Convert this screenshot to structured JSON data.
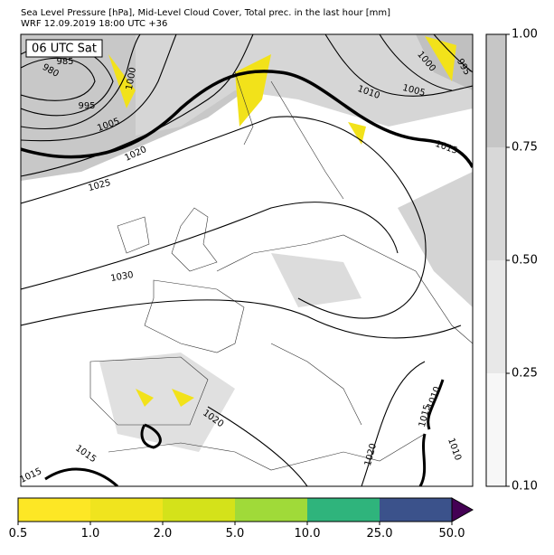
{
  "header": {
    "title": "Sea Level Pressure [hPa], Mid-Level Cloud Cover, Total prec. in the last hour [mm]",
    "subtitle": "WRF 12.09.2019 18:00 UTC +36"
  },
  "map": {
    "time_label": "06 UTC Sat",
    "isobar_labels": [
      "985",
      "980",
      "995",
      "1000",
      "1005",
      "1020",
      "1025",
      "1030",
      "1010",
      "1005",
      "1000",
      "995",
      "1015",
      "1020",
      "1015",
      "1015",
      "1010",
      "1020",
      "1015",
      "1010"
    ]
  },
  "cloud_colorbar": {
    "ticks": [
      {
        "value": 0.1,
        "label": "0.10"
      },
      {
        "value": 0.25,
        "label": "0.25"
      },
      {
        "value": 0.5,
        "label": "0.50"
      },
      {
        "value": 0.75,
        "label": "0.75"
      },
      {
        "value": 1,
        "label": "1.00"
      }
    ],
    "colors": [
      "#f7f7f7",
      "#e8e8e8",
      "#d8d8d8",
      "#c6c6c6"
    ]
  },
  "precip_colorbar": {
    "ticks": [
      0.5,
      {
        "value": 1,
        "label": "1.0"
      },
      {
        "value": 2,
        "label": "2.0"
      },
      {
        "value": 5,
        "label": "5.0"
      },
      {
        "value": 10,
        "label": "10.0"
      },
      {
        "value": 25,
        "label": "25.0"
      },
      {
        "value": 50,
        "label": "50.0"
      }
    ],
    "colors": [
      "#fde725",
      "#f0e41e",
      "#d4e21a",
      "#a0da39",
      "#2fb47c",
      "#3b528b"
    ],
    "extend_color": "#440154"
  }
}
